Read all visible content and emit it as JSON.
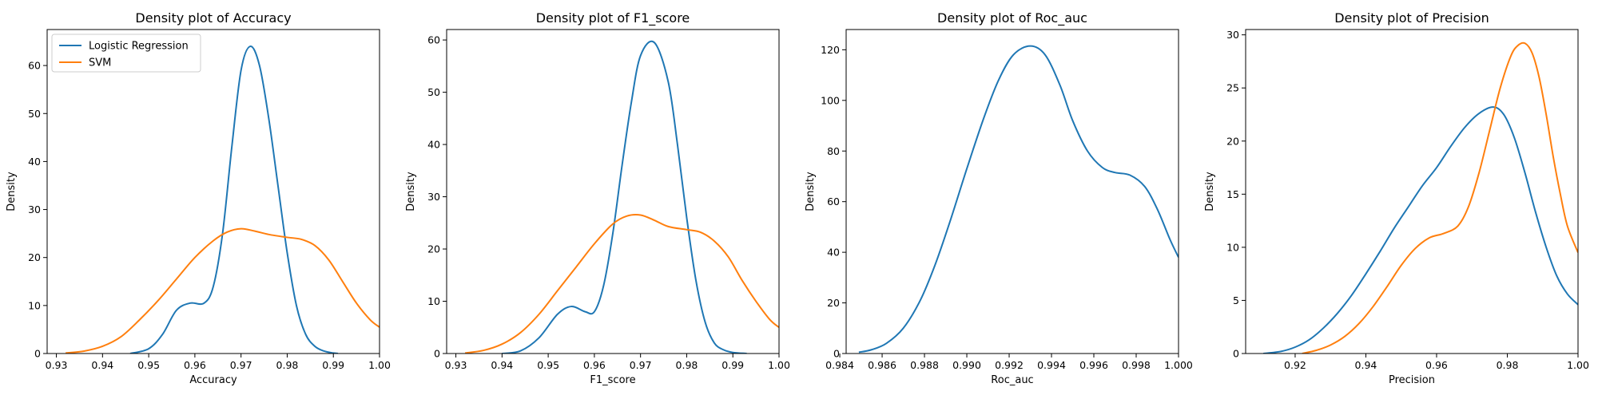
{
  "colors": {
    "series_a": "#1f77b4",
    "series_b": "#ff7f0e"
  },
  "chart_data": [
    {
      "type": "line",
      "title": "Density plot of Accuracy",
      "xlabel": "Accuracy",
      "ylabel": "Density",
      "xlim": [
        0.928,
        1.0
      ],
      "ylim": [
        0,
        67.5
      ],
      "xticks": [
        0.93,
        0.94,
        0.95,
        0.96,
        0.97,
        0.98,
        0.99,
        1.0
      ],
      "xtick_labels": [
        "0.93",
        "0.94",
        "0.95",
        "0.96",
        "0.97",
        "0.98",
        "0.99",
        "1.00"
      ],
      "yticks": [
        0,
        10,
        20,
        30,
        40,
        50,
        60
      ],
      "ytick_labels": [
        "0",
        "10",
        "20",
        "30",
        "40",
        "50",
        "60"
      ],
      "legend": {
        "position": "upper-left",
        "entries": [
          "Logistic Regression",
          "SVM"
        ]
      },
      "series": [
        {
          "name": "Logistic Regression",
          "color": "#1f77b4",
          "x": [
            0.946,
            0.95,
            0.953,
            0.956,
            0.959,
            0.962,
            0.964,
            0.966,
            0.968,
            0.97,
            0.972,
            0.974,
            0.976,
            0.978,
            0.98,
            0.982,
            0.984,
            0.986,
            0.988,
            0.99,
            0.991
          ],
          "y": [
            0,
            1,
            4,
            9,
            10.5,
            10.5,
            14,
            25,
            43,
            59,
            64,
            60,
            49,
            35,
            21,
            10,
            4,
            1.5,
            0.5,
            0.1,
            0
          ]
        },
        {
          "name": "SVM",
          "color": "#ff7f0e",
          "x": [
            0.932,
            0.936,
            0.94,
            0.944,
            0.948,
            0.952,
            0.956,
            0.96,
            0.964,
            0.967,
            0.97,
            0.973,
            0.976,
            0.98,
            0.983,
            0.986,
            0.989,
            0.992,
            0.995,
            0.998,
            1.0
          ],
          "y": [
            0.1,
            0.5,
            1.5,
            3.5,
            7,
            11,
            15.5,
            20,
            23.5,
            25.3,
            26,
            25.5,
            24.8,
            24.2,
            23.8,
            22.5,
            19.5,
            15,
            10.5,
            7,
            5.5
          ]
        }
      ]
    },
    {
      "type": "line",
      "title": "Density plot of F1_score",
      "xlabel": "F1_score",
      "ylabel": "Density",
      "xlim": [
        0.928,
        1.0
      ],
      "ylim": [
        0,
        62
      ],
      "xticks": [
        0.93,
        0.94,
        0.95,
        0.96,
        0.97,
        0.98,
        0.99,
        1.0
      ],
      "xtick_labels": [
        "0.93",
        "0.94",
        "0.95",
        "0.96",
        "0.97",
        "0.98",
        "0.99",
        "1.00"
      ],
      "yticks": [
        0,
        10,
        20,
        30,
        40,
        50,
        60
      ],
      "ytick_labels": [
        "0",
        "10",
        "20",
        "30",
        "40",
        "50",
        "60"
      ],
      "series": [
        {
          "name": "Logistic Regression",
          "color": "#1f77b4",
          "x": [
            0.94,
            0.944,
            0.948,
            0.952,
            0.955,
            0.958,
            0.96,
            0.962,
            0.964,
            0.966,
            0.968,
            0.97,
            0.973,
            0.976,
            0.978,
            0.98,
            0.982,
            0.984,
            0.986,
            0.988,
            0.99,
            0.993
          ],
          "y": [
            0,
            0.5,
            3,
            7.5,
            9,
            8,
            8,
            13,
            23,
            36,
            48,
            57,
            59.5,
            52,
            40,
            26,
            14,
            6,
            2,
            0.7,
            0.2,
            0
          ]
        },
        {
          "name": "SVM",
          "color": "#ff7f0e",
          "x": [
            0.932,
            0.936,
            0.94,
            0.944,
            0.948,
            0.952,
            0.956,
            0.96,
            0.964,
            0.967,
            0.97,
            0.973,
            0.976,
            0.98,
            0.983,
            0.986,
            0.989,
            0.992,
            0.995,
            0.998,
            1.0
          ],
          "y": [
            0.1,
            0.6,
            1.8,
            4,
            7.5,
            12,
            16.5,
            21,
            24.8,
            26.3,
            26.5,
            25.5,
            24.3,
            23.7,
            23.2,
            21.5,
            18.5,
            14,
            10,
            6.5,
            5
          ]
        }
      ]
    },
    {
      "type": "line",
      "title": "Density plot of Roc_auc",
      "xlabel": "Roc_auc",
      "ylabel": "Density",
      "xlim": [
        0.9843,
        1.0
      ],
      "ylim": [
        0,
        128
      ],
      "xticks": [
        0.984,
        0.986,
        0.988,
        0.99,
        0.992,
        0.994,
        0.996,
        0.998,
        1.0
      ],
      "xtick_labels": [
        "0.984",
        "0.986",
        "0.988",
        "0.990",
        "0.992",
        "0.994",
        "0.996",
        "0.998",
        "1.000"
      ],
      "yticks": [
        0,
        20,
        40,
        60,
        80,
        100,
        120
      ],
      "ytick_labels": [
        "0",
        "20",
        "40",
        "60",
        "80",
        "100",
        "120"
      ],
      "series": [
        {
          "name": "",
          "color": "#1f77b4",
          "x": [
            0.9849,
            0.9855,
            0.9862,
            0.987,
            0.9878,
            0.9885,
            0.9892,
            0.99,
            0.9908,
            0.9915,
            0.9922,
            0.993,
            0.9937,
            0.9944,
            0.995,
            0.9957,
            0.9964,
            0.997,
            0.9977,
            0.9984,
            0.999,
            0.9996,
            1.0
          ],
          "y": [
            0.5,
            1.5,
            4,
            10,
            21,
            35,
            52,
            73,
            93,
            108,
            118,
            121.5,
            118,
            106,
            92,
            80,
            73.5,
            71.5,
            70.5,
            66,
            57,
            45,
            38
          ]
        }
      ]
    },
    {
      "type": "line",
      "title": "Density plot of Precision",
      "xlabel": "Precision",
      "ylabel": "Density",
      "xlim": [
        0.906,
        1.0
      ],
      "ylim": [
        0,
        30.5
      ],
      "xticks": [
        0.92,
        0.94,
        0.96,
        0.98,
        1.0
      ],
      "xtick_labels": [
        "0.92",
        "0.94",
        "0.96",
        "0.98",
        "1.00"
      ],
      "yticks": [
        0,
        5,
        10,
        15,
        20,
        25,
        30
      ],
      "ytick_labels": [
        "0",
        "5",
        "10",
        "15",
        "20",
        "25",
        "30"
      ],
      "series": [
        {
          "name": "Logistic Regression",
          "color": "#1f77b4",
          "x": [
            0.911,
            0.916,
            0.92,
            0.924,
            0.928,
            0.932,
            0.936,
            0.94,
            0.944,
            0.948,
            0.952,
            0.956,
            0.96,
            0.964,
            0.968,
            0.972,
            0.976,
            0.979,
            0.982,
            0.985,
            0.988,
            0.991,
            0.994,
            0.997,
            1.0
          ],
          "y": [
            0,
            0.2,
            0.6,
            1.3,
            2.4,
            3.8,
            5.5,
            7.5,
            9.6,
            11.8,
            13.8,
            15.8,
            17.5,
            19.5,
            21.3,
            22.6,
            23.2,
            22.5,
            20.3,
            17,
            13.3,
            10,
            7.3,
            5.6,
            4.6
          ]
        },
        {
          "name": "SVM",
          "color": "#ff7f0e",
          "x": [
            0.922,
            0.926,
            0.93,
            0.934,
            0.938,
            0.942,
            0.946,
            0.95,
            0.954,
            0.958,
            0.962,
            0.966,
            0.969,
            0.972,
            0.975,
            0.978,
            0.981,
            0.983,
            0.985,
            0.987,
            0.989,
            0.991,
            0.993,
            0.995,
            0.997,
            1.0
          ],
          "y": [
            0,
            0.3,
            0.8,
            1.6,
            2.8,
            4.4,
            6.3,
            8.3,
            9.9,
            10.9,
            11.3,
            12,
            13.8,
            17,
            21,
            25,
            28,
            29,
            29.2,
            28.3,
            26,
            22.5,
            18.5,
            15,
            12,
            9.5
          ]
        }
      ]
    }
  ]
}
